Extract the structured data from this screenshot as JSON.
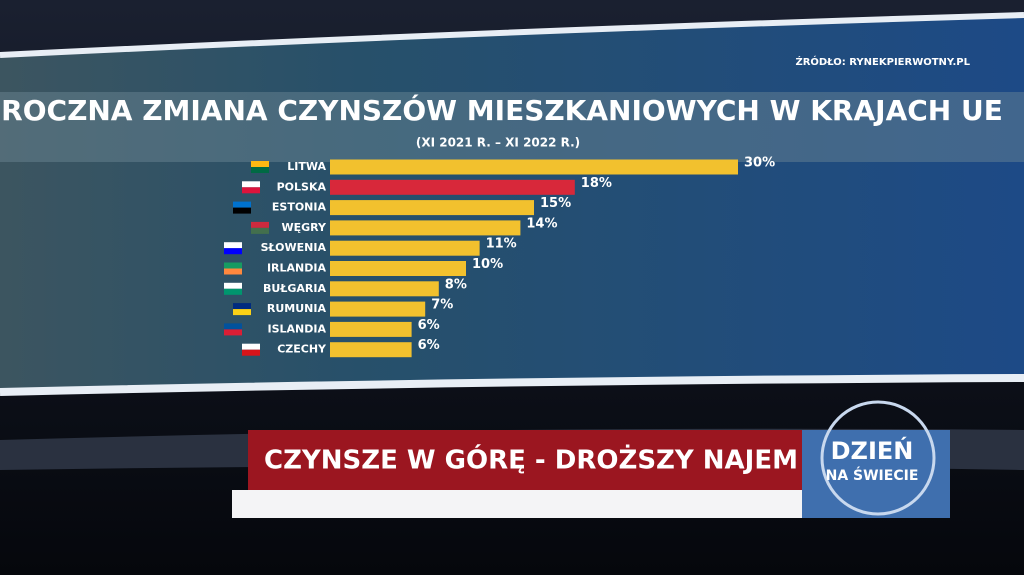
{
  "chart_data": {
    "type": "hbar",
    "title": "ROCZNA ZMIANA CZYNSZÓW MIESZKANIOWYCH W KRAJACH UE",
    "subtitle": "(XI 2021 R. – XI 2022 R.)",
    "source": "ŹRÓDŁO: RYNEKPIERWOTNY.PL",
    "categories": [
      "LITWA",
      "POLSKA",
      "ESTONIA",
      "WĘGRY",
      "SŁOWENIA",
      "IRLANDIA",
      "BUŁGARIA",
      "RUMUNIA",
      "ISLANDIA",
      "CZECHY"
    ],
    "values": [
      30,
      18,
      15,
      14,
      11,
      10,
      8,
      7,
      6,
      6
    ],
    "value_labels": [
      "30%",
      "18%",
      "15%",
      "14%",
      "11%",
      "10%",
      "8%",
      "7%",
      "6%",
      "6%"
    ],
    "colors": [
      "#f2c12e",
      "#d8283a",
      "#f2c12e",
      "#f2c12e",
      "#f2c12e",
      "#f2c12e",
      "#f2c12e",
      "#f2c12e",
      "#f2c12e",
      "#f2c12e"
    ]
  },
  "banner": {
    "headline": "CZYNSZE W GÓRĘ - DROŻSZY NAJEM",
    "logo_line1": "DZIEŃ",
    "logo_line2": "NA ŚWIECIE"
  }
}
